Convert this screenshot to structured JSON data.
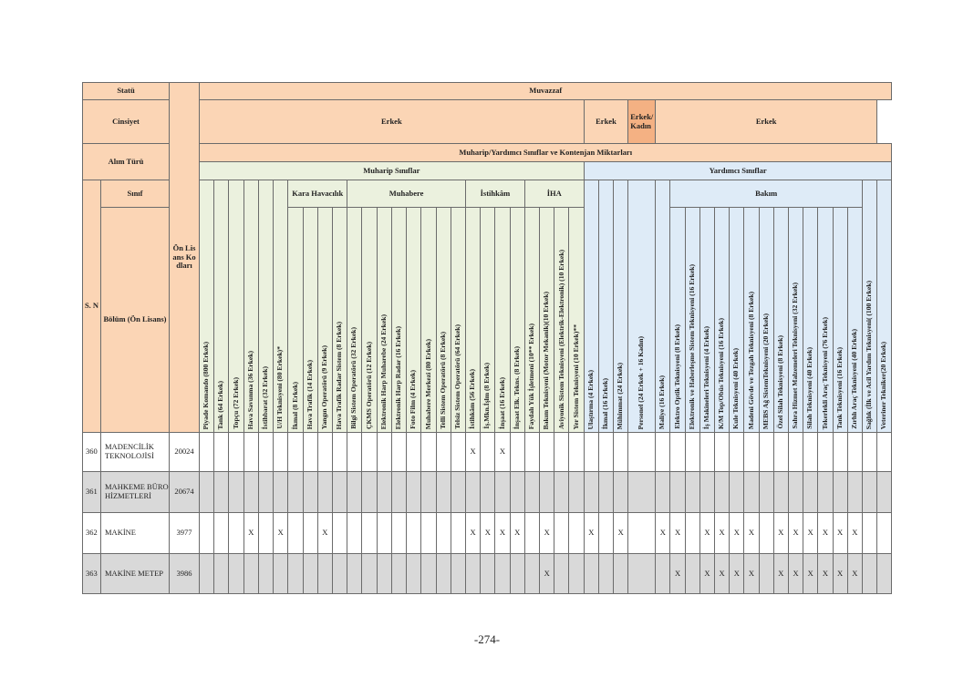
{
  "header": {
    "statu_label": "Statü",
    "statu_value": "Muvazzaf",
    "cinsiyet_label": "Cinsiyet",
    "cinsiyet_values": [
      "Erkek",
      "Erkek",
      "Erkek/Kadın",
      "Erkek"
    ],
    "alim_turu_label": "Alım Türü",
    "alim_turu_value": "Muharip/Yardımcı Sınıflar ve Kontenjan Miktarları",
    "muharip_label": "Muharip Sınıflar",
    "yardimci_label": "Yardımcı Sınıflar",
    "sinif_label": "Sınıf",
    "sn_label": "S. N",
    "bolum_label": "Bölüm (Ön Lisans)",
    "kod_label": "Ön Lisans Kodları"
  },
  "groups": {
    "kara_havacilik": "Kara Havacılık",
    "muhabere": "Muhabere",
    "istihkam": "İstihkâm",
    "iha": "İHA",
    "bakim": "Bakım"
  },
  "columns": [
    {
      "label": "Piyade Komando (800 Erkek)",
      "group": ""
    },
    {
      "label": "Tank (64 Erkek)",
      "group": ""
    },
    {
      "label": "Topçu (72 Erkek)",
      "group": ""
    },
    {
      "label": "Hava Savunma (36 Erkek)",
      "group": ""
    },
    {
      "label": "İstihbarat (32 Erkek)",
      "group": ""
    },
    {
      "label": "U/H Teknisyeni (80 Erkek)*",
      "group": ""
    },
    {
      "label": "İkmal (8 Erkek)",
      "group": "kara_havacilik"
    },
    {
      "label": "Hava Trafik (14 Erkek)",
      "group": "kara_havacilik"
    },
    {
      "label": "Yangın Operatörü (9 Erkek)",
      "group": "kara_havacilik"
    },
    {
      "label": "Hava Trafik Radar Sistem (8 Erkek)",
      "group": "kara_havacilik"
    },
    {
      "label": "Bilgi Sistem Operatörü (32 Erkek)",
      "group": "muhabere"
    },
    {
      "label": "ÇKMS Operatörü (12 Erkek)",
      "group": "muhabere"
    },
    {
      "label": "Elektronik Harp Muharebe (24 Erkek)",
      "group": "muhabere"
    },
    {
      "label": "Elektronik Harp Radar (16 Erkek)",
      "group": "muhabere"
    },
    {
      "label": "Foto Film (4 Erkek)",
      "group": "muhabere"
    },
    {
      "label": "Muhabere Merkezi (80 Erkek)",
      "group": "muhabere"
    },
    {
      "label": "Telli Sistem Operatörü (8 Erkek)",
      "group": "muhabere"
    },
    {
      "label": "Telsiz Sistem Operatörü (64 Erkek)",
      "group": "muhabere"
    },
    {
      "label": "İstihkâm (56 Erkek)",
      "group": "istihkam"
    },
    {
      "label": "İş.Mkn.İşlm (8 Erkek)",
      "group": "istihkam"
    },
    {
      "label": "İnşaat (16 Erkek)",
      "group": "istihkam"
    },
    {
      "label": "İnşaat Elk. Tekns. (8 Erkek)",
      "group": "istihkam"
    },
    {
      "label": "Faydalı Yük İşletmeni (10** Erkek)",
      "group": "iha"
    },
    {
      "label": "Bakım Teknisyeni (Motor Mekanik)(10 Erkek)",
      "group": "iha"
    },
    {
      "label": "Aviyonik Sistem Teknisyeni (Elektrik-Elektronik) (10 Erkek)",
      "group": "iha"
    },
    {
      "label": "Yer Sistem Teknisyeni (10 Erkek)**",
      "group": "iha"
    },
    {
      "label": "Ulaştırma (4 Erkek)",
      "group": ""
    },
    {
      "label": "İkmal (16 Erkek)",
      "group": ""
    },
    {
      "label": "Mühimmat (24 Erkek)",
      "group": ""
    },
    {
      "label": "Personel (24 Erkek + 16 Kadın)",
      "group": ""
    },
    {
      "label": "Maliye (16 Erkek)",
      "group": ""
    },
    {
      "label": "Elektro Optik Teknisyeni (8 Erkek)",
      "group": "bakim"
    },
    {
      "label": "Elektronik ve Haberleşme Sistem Teknisyeni (16 Erkek)",
      "group": "bakim"
    },
    {
      "label": "İş Makineleri Teknisyeni (4 Erkek)",
      "group": "bakim"
    },
    {
      "label": "K/M Top/Obüs Teknisyeni (16 Erkek)",
      "group": "bakim"
    },
    {
      "label": "Kule Teknisyeni (40 Erkek)",
      "group": "bakim"
    },
    {
      "label": "Madeni Gövde ve Tezgah Teknisyeni (8 Erkek)",
      "group": "bakim"
    },
    {
      "label": "MEBS Ağ SistemTeknisyeni (20 Erkek)",
      "group": "bakim"
    },
    {
      "label": "Özel Silah Teknisyeni (8 Erkek)",
      "group": "bakim"
    },
    {
      "label": "Sahra Hizmet Malzemeleri Teknisyeni (32 Erkek)",
      "group": "bakim"
    },
    {
      "label": "Silah Teknisyeni (40 Erkek)",
      "group": "bakim"
    },
    {
      "label": "Tekerlekli Araç Teknisyeni (76 Erkek)",
      "group": "bakim"
    },
    {
      "label": "Tank Teknisyeni (16 Erkek)",
      "group": "bakim"
    },
    {
      "label": "Zırhlı Araç Teknisyeni (40 Erkek)",
      "group": "bakim"
    },
    {
      "label": "Sağlık (İlk ve Acil Yardım Teknisyeni( (100 Erkek)",
      "group": ""
    },
    {
      "label": "Veteriner Tekniker(20 Erkek)",
      "group": ""
    }
  ],
  "rows": [
    {
      "sn": "360",
      "bolum": "MADENCİLİK TEKNOLOJİSİ",
      "code": "20024",
      "marks": [
        "",
        "",
        "",
        "",
        "",
        "",
        "",
        "",
        "",
        "",
        "",
        "",
        "",
        "",
        "",
        "",
        "",
        "",
        "X",
        "",
        "X",
        "",
        "",
        "",
        "",
        "",
        "",
        "",
        "",
        "",
        "",
        "",
        "",
        "",
        "",
        "",
        "",
        "",
        "",
        "",
        "",
        "",
        "",
        "",
        "",
        ""
      ]
    },
    {
      "sn": "361",
      "bolum": "MAHKEME BÜRO HİZMETLERİ",
      "code": "20674",
      "marks": [
        "",
        "",
        "",
        "",
        "",
        "",
        "",
        "",
        "",
        "",
        "",
        "",
        "",
        "",
        "",
        "",
        "",
        "",
        "",
        "",
        "",
        "",
        "",
        "",
        "",
        "",
        "",
        "",
        "",
        "",
        "",
        "",
        "",
        "",
        "",
        "",
        "",
        "",
        "",
        "",
        "",
        "",
        "",
        "",
        "",
        ""
      ]
    },
    {
      "sn": "362",
      "bolum": "MAKİNE",
      "code": "3977",
      "marks": [
        "",
        "",
        "",
        "X",
        "",
        "X",
        "",
        "",
        "X",
        "",
        "",
        "",
        "",
        "",
        "",
        "",
        "",
        "",
        "X",
        "X",
        "X",
        "X",
        "",
        "X",
        "",
        "",
        "X",
        "",
        "X",
        "",
        "X",
        "X",
        "",
        "X",
        "X",
        "X",
        "X",
        "",
        "X",
        "X",
        "X",
        "X",
        "X",
        "X",
        "",
        ""
      ]
    },
    {
      "sn": "363",
      "bolum": "MAKİNE METEP",
      "code": "3986",
      "marks": [
        "",
        "",
        "",
        "",
        "",
        "",
        "",
        "",
        "",
        "",
        "",
        "",
        "",
        "",
        "",
        "",
        "",
        "",
        "",
        "",
        "",
        "",
        "",
        "X",
        "",
        "",
        "",
        "",
        "",
        "",
        "",
        "X",
        "",
        "X",
        "X",
        "X",
        "X",
        "",
        "X",
        "X",
        "X",
        "X",
        "X",
        "X",
        "",
        ""
      ]
    }
  ],
  "footer": {
    "page_number": "-274-"
  },
  "colors": {
    "orange": "#FBD5B5",
    "orange_dark": "#F4B183",
    "muharip_green": "#EBF1DE",
    "yardimci_blue": "#DEEBF7",
    "row_gray": "#D9D9D9"
  }
}
